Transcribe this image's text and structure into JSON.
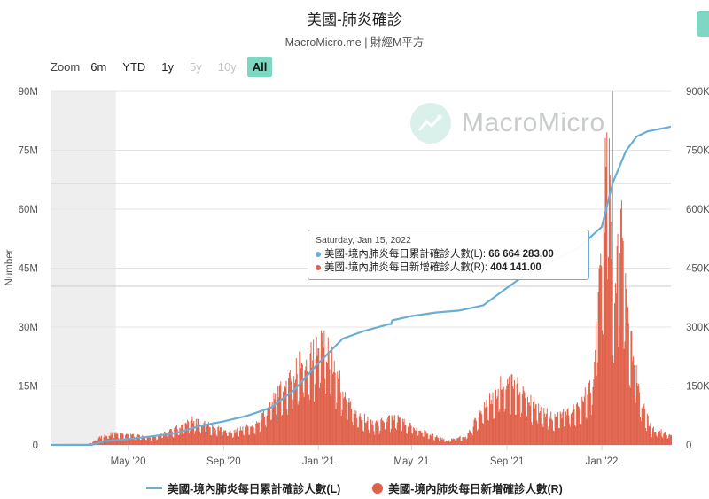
{
  "header": {
    "title": "美國-肺炎確診",
    "subtitle": "MacroMicro.me | 財經M平方"
  },
  "zoom": {
    "label": "Zoom",
    "buttons": [
      {
        "label": "6m",
        "state": "normal"
      },
      {
        "label": "YTD",
        "state": "normal"
      },
      {
        "label": "1y",
        "state": "normal"
      },
      {
        "label": "5y",
        "state": "disabled"
      },
      {
        "label": "10y",
        "state": "disabled"
      },
      {
        "label": "All",
        "state": "active"
      }
    ]
  },
  "watermark": {
    "text": "MacroMicro",
    "icon": "chart-trend-icon"
  },
  "tooltip": {
    "date": "Saturday, Jan 15, 2022",
    "row1_label": "美國-境內肺炎每日累計確診人數(L): ",
    "row1_value": "66 664 283.00",
    "row2_label": "美國-境內肺炎每日新增確診人數(R): ",
    "row2_value": "404 141.00"
  },
  "legend": {
    "item1": "美國-境內肺炎每日累計確診人數(L)",
    "item2": "美國-境內肺炎每日新增確診人數(R)"
  },
  "colors": {
    "line": "#6aaed6",
    "bar": "#e0614a",
    "accent": "#7fd6c2"
  },
  "chart_data": {
    "type": "line+bar",
    "title": "美國-肺炎確診",
    "subtitle": "MacroMicro.me | 財經M平方",
    "ylabel": "Number",
    "ylim_left": [
      0,
      90000000
    ],
    "ylim_right": [
      0,
      900000
    ],
    "y_ticks_left": [
      "0",
      "15M",
      "30M",
      "45M",
      "60M",
      "75M",
      "90M"
    ],
    "y_ticks_right": [
      "0",
      "150K",
      "300K",
      "450K",
      "600K",
      "750K",
      "900K"
    ],
    "x_ticks": [
      {
        "label": "May '20",
        "date": "2020-05-01"
      },
      {
        "label": "Sep '20",
        "date": "2020-09-01"
      },
      {
        "label": "Jan '21",
        "date": "2021-01-01"
      },
      {
        "label": "May '21",
        "date": "2021-05-01"
      },
      {
        "label": "Sep '21",
        "date": "2021-09-01"
      },
      {
        "label": "Jan '22",
        "date": "2022-01-01"
      }
    ],
    "xlim": [
      "2020-01-22",
      "2022-03-31"
    ],
    "highlight_band": [
      "2020-01-22",
      "2020-04-15"
    ],
    "highlight_date": "2022-01-15",
    "series": [
      {
        "name": "美國-境內肺炎每日累計確診人數(L)",
        "type": "line",
        "axis": "left",
        "points": [
          [
            "2020-01-22",
            0
          ],
          [
            "2020-03-15",
            20000
          ],
          [
            "2020-04-01",
            1000000
          ],
          [
            "2020-05-01",
            1500000
          ],
          [
            "2020-06-01",
            2200000
          ],
          [
            "2020-07-01",
            3000000
          ],
          [
            "2020-08-01",
            4800000
          ],
          [
            "2020-09-01",
            6000000
          ],
          [
            "2020-10-01",
            7400000
          ],
          [
            "2020-11-01",
            9500000
          ],
          [
            "2020-12-01",
            14000000
          ],
          [
            "2021-01-01",
            20800000
          ],
          [
            "2021-02-01",
            27000000
          ],
          [
            "2021-03-01",
            29000000
          ],
          [
            "2021-04-01",
            30700000
          ],
          [
            "2021-04-05",
            30800000
          ],
          [
            "2021-04-06",
            31700000
          ],
          [
            "2021-05-01",
            32800000
          ],
          [
            "2021-06-01",
            33700000
          ],
          [
            "2021-07-01",
            34200000
          ],
          [
            "2021-08-01",
            35500000
          ],
          [
            "2021-09-01",
            40000000
          ],
          [
            "2021-10-01",
            44200000
          ],
          [
            "2021-11-01",
            47000000
          ],
          [
            "2021-12-01",
            50000000
          ],
          [
            "2022-01-01",
            55500000
          ],
          [
            "2022-01-15",
            66664283
          ],
          [
            "2022-02-01",
            74800000
          ],
          [
            "2022-02-15",
            78500000
          ],
          [
            "2022-03-01",
            79800000
          ],
          [
            "2022-03-31",
            81000000
          ]
        ]
      },
      {
        "name": "美國-境內肺炎每日新增確診人數(R)",
        "type": "bar",
        "axis": "right",
        "points": [
          [
            "2020-01-22",
            0
          ],
          [
            "2020-03-10",
            2000
          ],
          [
            "2020-03-25",
            20000
          ],
          [
            "2020-04-10",
            31000
          ],
          [
            "2020-05-01",
            28000
          ],
          [
            "2020-06-01",
            21000
          ],
          [
            "2020-06-25",
            38000
          ],
          [
            "2020-07-20",
            68000
          ],
          [
            "2020-08-15",
            52000
          ],
          [
            "2020-09-10",
            36000
          ],
          [
            "2020-10-15",
            58000
          ],
          [
            "2020-11-15",
            160000
          ],
          [
            "2020-12-10",
            225000
          ],
          [
            "2021-01-08",
            285000
          ],
          [
            "2021-01-25",
            190000
          ],
          [
            "2021-02-15",
            90000
          ],
          [
            "2021-03-15",
            58000
          ],
          [
            "2021-04-10",
            75000
          ],
          [
            "2021-05-10",
            40000
          ],
          [
            "2021-06-15",
            13000
          ],
          [
            "2021-07-10",
            25000
          ],
          [
            "2021-07-31",
            100000
          ],
          [
            "2021-08-25",
            165000
          ],
          [
            "2021-09-10",
            175000
          ],
          [
            "2021-10-10",
            100000
          ],
          [
            "2021-11-01",
            75000
          ],
          [
            "2021-12-01",
            105000
          ],
          [
            "2021-12-20",
            180000
          ],
          [
            "2022-01-03",
            600000
          ],
          [
            "2022-01-07",
            830000
          ],
          [
            "2022-01-10",
            780000
          ],
          [
            "2022-01-15",
            404141
          ],
          [
            "2022-01-25",
            600000
          ],
          [
            "2022-02-05",
            300000
          ],
          [
            "2022-02-20",
            120000
          ],
          [
            "2022-03-05",
            45000
          ],
          [
            "2022-03-31",
            28000
          ]
        ]
      }
    ]
  }
}
